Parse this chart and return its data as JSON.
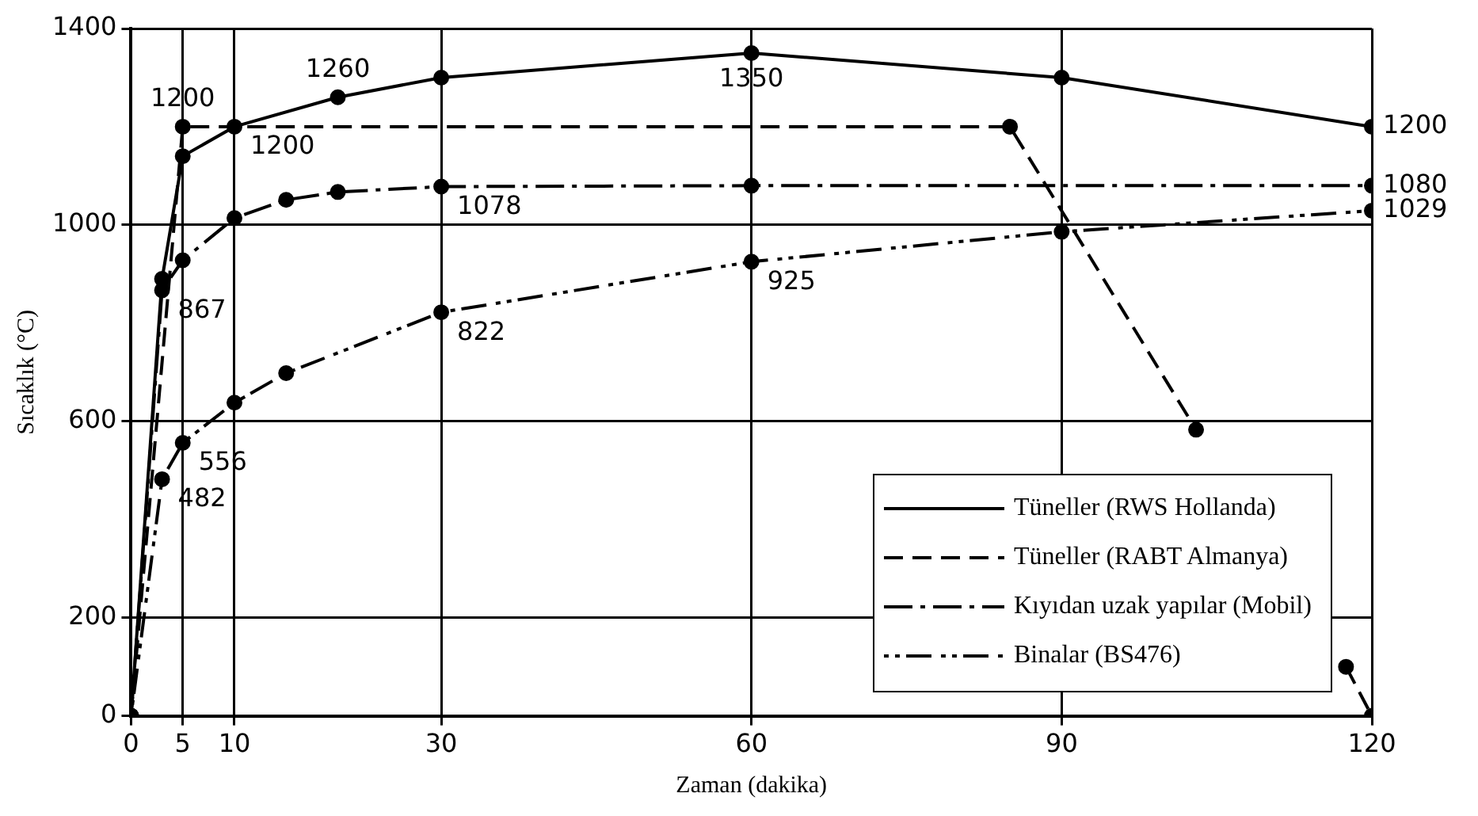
{
  "chart_data": {
    "type": "line",
    "xlabel": "Zaman (dakika)",
    "ylabel": "Sıcaklık (°C)",
    "xlim": [
      0,
      120
    ],
    "xticks": [
      0,
      5,
      10,
      30,
      60,
      90,
      120
    ],
    "ylim": [
      0,
      1400
    ],
    "yticks": [
      0,
      200,
      600,
      1000,
      1400
    ],
    "grid": true,
    "legend": "bottom right",
    "marker": "circle",
    "series": [
      {
        "name": "Tüneller (RWS Hollanda)",
        "color": "#000000",
        "line_style": "solid",
        "x": [
          0,
          3,
          5,
          10,
          20,
          30,
          60,
          90,
          120
        ],
        "values": [
          0,
          890,
          1140,
          1200,
          1260,
          1300,
          1350,
          1300,
          1200
        ],
        "value_labels": [
          null,
          null,
          null,
          "1200",
          "1260",
          null,
          "1350",
          null,
          "1200"
        ]
      },
      {
        "name": "Tüneller (RABT Almanya)",
        "color": "#000000",
        "line_style": "dashed",
        "x": [
          0,
          5,
          85,
          103,
          104,
          117.5,
          120
        ],
        "values": [
          0,
          1200,
          1200,
          583,
          null,
          100,
          0
        ],
        "value_labels": [
          null,
          "1200",
          null,
          null,
          null,
          null,
          null
        ]
      },
      {
        "name": "Kıyıdan uzak yapılar (Mobil)",
        "color": "#000000",
        "line_style": "dashdot",
        "x": [
          0,
          3,
          5,
          10,
          15,
          20,
          30,
          60,
          120
        ],
        "values": [
          0,
          867,
          928,
          1014,
          1051,
          1067,
          1078,
          1080,
          1080
        ],
        "value_labels": [
          null,
          "867",
          null,
          null,
          null,
          null,
          "1078",
          null,
          "1080"
        ]
      },
      {
        "name": "Binalar (BS476)",
        "color": "#000000",
        "line_style": "dashdotdot",
        "x": [
          0,
          3,
          5,
          10,
          15,
          30,
          60,
          90,
          120
        ],
        "values": [
          0,
          482,
          556,
          638,
          698,
          822,
          925,
          986,
          1029
        ],
        "value_labels": [
          null,
          "482",
          "556",
          null,
          null,
          "822",
          "925",
          null,
          "1029"
        ]
      }
    ]
  }
}
